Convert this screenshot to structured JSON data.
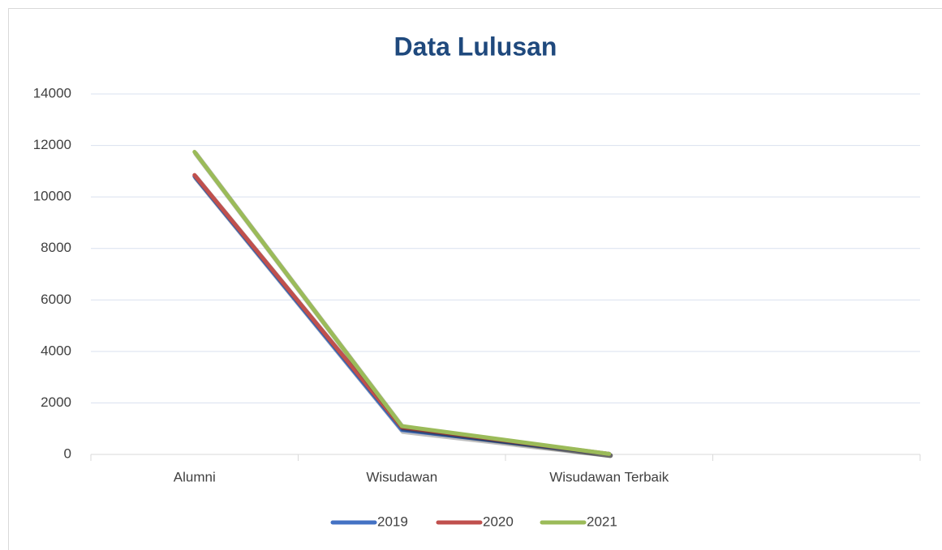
{
  "chart_data": {
    "type": "line",
    "title": "Data Lulusan",
    "categories": [
      "Alumni",
      "Wisudawan",
      "Wisudawan Terbaik",
      null
    ],
    "series": [
      {
        "name": "2019",
        "color": "#4472c4",
        "values": [
          10800,
          950,
          20,
          null
        ]
      },
      {
        "name": "2020",
        "color": "#c0504d",
        "values": [
          10850,
          1050,
          20,
          null
        ]
      },
      {
        "name": "2021",
        "color": "#9bbb59",
        "values": [
          11750,
          1100,
          20,
          null
        ]
      }
    ],
    "ylim": [
      0,
      14000
    ],
    "yticks": [
      0,
      2000,
      4000,
      6000,
      8000,
      10000,
      12000,
      14000
    ],
    "grid": true,
    "legend": "bottom"
  }
}
